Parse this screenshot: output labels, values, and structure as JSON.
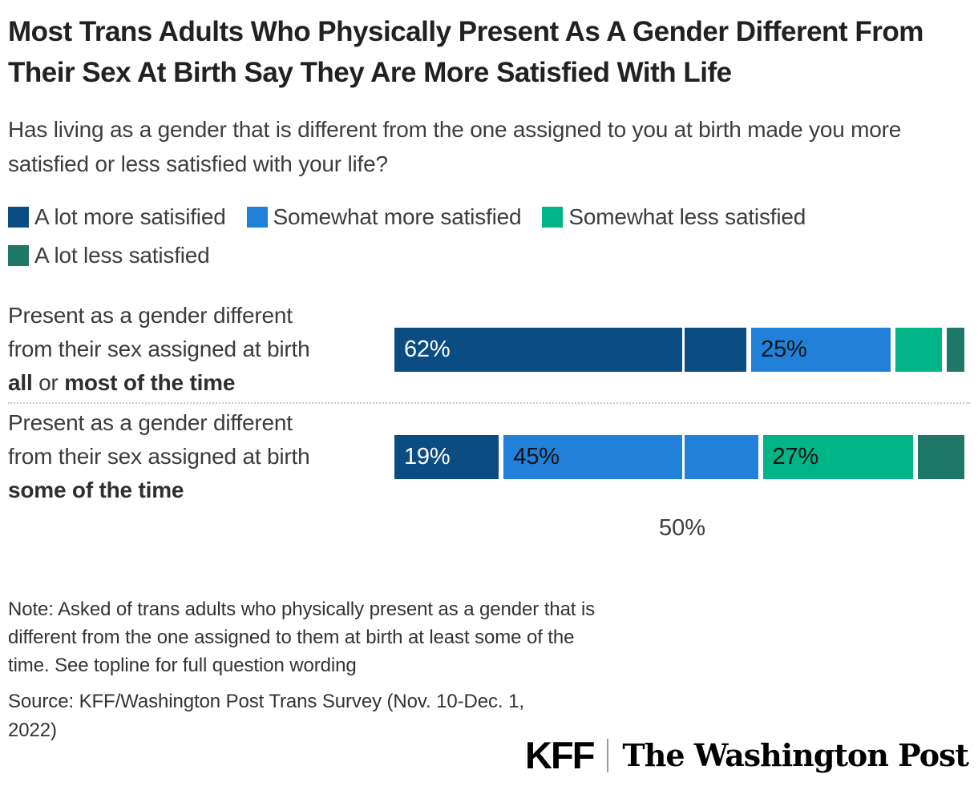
{
  "title": "Most Trans Adults Who Physically Present As A Gender Different From Their Sex At Birth Say They Are More Satisfied With Life",
  "subtitle": "Has living as a gender that is different from the one assigned to you at birth made you more satisfied or less satisfied with your life?",
  "legend": [
    {
      "label": "A lot more satisified",
      "color": "#0b4d82"
    },
    {
      "label": "Somewhat more satisfied",
      "color": "#2181d8"
    },
    {
      "label": "Somewhat less satisfied",
      "color": "#00b487"
    },
    {
      "label": "A lot less satisfied",
      "color": "#1f7767"
    }
  ],
  "rows": [
    {
      "label_html": "Present as a gender different<br>from their sex assigned at birth<br><strong>all</strong> or <strong>most of the time</strong>"
    },
    {
      "label_html": "Present as a gender different<br>from their sex assigned at birth<br><strong>some of the time</strong>"
    }
  ],
  "chart_data": {
    "type": "bar",
    "orientation": "horizontal",
    "stacked": true,
    "categories": [
      "Present as a gender different from their sex assigned at birth all or most of the time",
      "Present as a gender different from their sex assigned at birth some of the time"
    ],
    "series": [
      {
        "name": "A lot more satisified",
        "color": "#0b4d82",
        "label_color": "#ffffff",
        "values": [
          62,
          19
        ]
      },
      {
        "name": "Somewhat more satisfied",
        "color": "#2181d8",
        "label_color": "#111111",
        "values": [
          25,
          45
        ]
      },
      {
        "name": "Somewhat less satisfied",
        "color": "#00b487",
        "label_color": "#111111",
        "values": [
          9,
          27
        ]
      },
      {
        "name": "A lot less satisfied",
        "color": "#1f7767",
        "label_color": "#ffffff",
        "values": [
          3,
          8
        ]
      }
    ],
    "xlim": [
      0,
      100
    ],
    "gridline_x": 50,
    "axis_tick_label": "50%",
    "min_label_value": 15,
    "value_suffix": "%",
    "legend_position": "top",
    "grid": "single vertical gridline at 50%"
  },
  "axis": {
    "tick_label": "50%"
  },
  "note": "Note: Asked of trans adults who physically present as a gender that is different from the one assigned to them at birth at least some of the time. See topline for full question wording",
  "source": "Source: KFF/Washington Post Trans Survey (Nov. 10-Dec. 1, 2022)",
  "logos": {
    "kff": "KFF",
    "wapo": "The Washington Post"
  }
}
